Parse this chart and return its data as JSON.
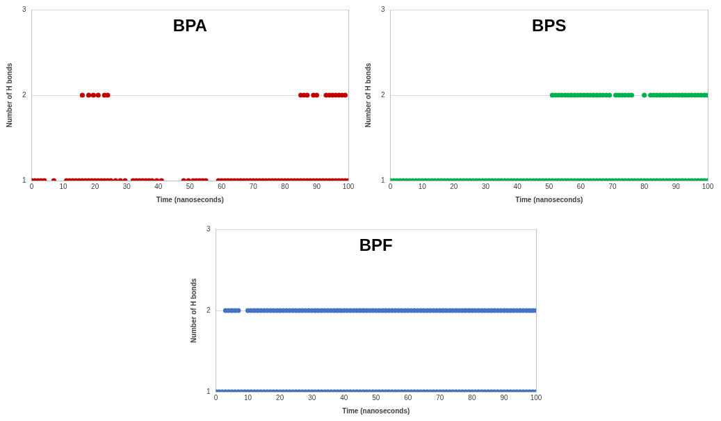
{
  "chart_data": [
    {
      "type": "scatter",
      "title": "BPA",
      "xlabel": "Time (nanoseconds)",
      "ylabel": "Number of H bonds",
      "color": "#c00000",
      "marker": "circle",
      "grid": "y",
      "xlim": [
        0,
        100
      ],
      "xticks": [
        0,
        10,
        20,
        30,
        40,
        50,
        60,
        70,
        80,
        90,
        100
      ],
      "ylim": [
        1,
        3
      ],
      "yticks": [
        1,
        2,
        3
      ],
      "x": [
        0,
        1,
        2,
        3,
        4,
        7,
        11,
        12,
        13,
        14,
        15,
        16,
        17,
        18,
        19,
        20,
        21,
        22,
        23,
        24,
        25,
        26.5,
        28,
        29.5,
        32,
        33,
        34,
        35,
        36,
        37,
        38,
        39.5,
        41,
        48,
        49.5,
        51,
        52,
        53,
        54,
        55,
        59,
        60,
        61,
        62,
        63,
        64,
        65,
        66,
        67,
        68,
        69,
        70,
        71,
        72,
        73,
        74,
        75,
        76,
        77,
        78,
        79,
        80,
        81,
        82,
        83,
        84,
        85,
        86,
        87,
        88,
        89,
        90,
        91,
        92,
        93,
        94,
        95,
        96,
        97,
        98,
        99,
        100,
        16,
        18,
        19.5,
        21,
        23,
        24,
        85,
        86,
        87,
        89,
        90,
        93,
        94,
        95,
        96,
        97,
        98,
        99
      ],
      "values": [
        1,
        1,
        1,
        1,
        1,
        1,
        1,
        1,
        1,
        1,
        1,
        1,
        1,
        1,
        1,
        1,
        1,
        1,
        1,
        1,
        1,
        1,
        1,
        1,
        1,
        1,
        1,
        1,
        1,
        1,
        1,
        1,
        1,
        1,
        1,
        1,
        1,
        1,
        1,
        1,
        1,
        1,
        1,
        1,
        1,
        1,
        1,
        1,
        1,
        1,
        1,
        1,
        1,
        1,
        1,
        1,
        1,
        1,
        1,
        1,
        1,
        1,
        1,
        1,
        1,
        1,
        1,
        1,
        1,
        1,
        1,
        1,
        1,
        1,
        1,
        1,
        1,
        1,
        1,
        1,
        1,
        1,
        2,
        2,
        2,
        2,
        2,
        2,
        2,
        2,
        2,
        2,
        2,
        2,
        2,
        2,
        2,
        2,
        2,
        2
      ]
    },
    {
      "type": "scatter",
      "title": "BPS",
      "xlabel": "Time (nanoseconds)",
      "ylabel": "Number of H bonds",
      "color": "#00b050",
      "marker": "circle",
      "grid": "y",
      "xlim": [
        0,
        100
      ],
      "xticks": [
        0,
        10,
        20,
        30,
        40,
        50,
        60,
        70,
        80,
        90,
        100
      ],
      "ylim": [
        1,
        3
      ],
      "yticks": [
        1,
        2,
        3
      ],
      "x": [
        0,
        1,
        2,
        3,
        4,
        5,
        6,
        7,
        8,
        9,
        10,
        11,
        12,
        13,
        14,
        15,
        16,
        17,
        18,
        19,
        20,
        21,
        22,
        23,
        24,
        25,
        26,
        27,
        28,
        29,
        30,
        31,
        32,
        33,
        34,
        35,
        36,
        37,
        38,
        39,
        40,
        41,
        42,
        43,
        44,
        45,
        46,
        47,
        48,
        49,
        50,
        51,
        52,
        53,
        54,
        55,
        56,
        57,
        58,
        59,
        60,
        61,
        62,
        63,
        64,
        65,
        66,
        67,
        68,
        69,
        70,
        71,
        72,
        73,
        74,
        75,
        76,
        77,
        78,
        79,
        80,
        81,
        82,
        83,
        84,
        85,
        86,
        87,
        88,
        89,
        90,
        91,
        92,
        93,
        94,
        95,
        96,
        97,
        98,
        99,
        100,
        51,
        52,
        53,
        54,
        55,
        56,
        57,
        58,
        59,
        60,
        61,
        62,
        63,
        64,
        65,
        66,
        67,
        68,
        69,
        71,
        72,
        73,
        74,
        75,
        76,
        80,
        82,
        83,
        84,
        85,
        86,
        87,
        88,
        89,
        90,
        91,
        92,
        93,
        94,
        95,
        96,
        97,
        98,
        99,
        100
      ],
      "values": [
        1,
        1,
        1,
        1,
        1,
        1,
        1,
        1,
        1,
        1,
        1,
        1,
        1,
        1,
        1,
        1,
        1,
        1,
        1,
        1,
        1,
        1,
        1,
        1,
        1,
        1,
        1,
        1,
        1,
        1,
        1,
        1,
        1,
        1,
        1,
        1,
        1,
        1,
        1,
        1,
        1,
        1,
        1,
        1,
        1,
        1,
        1,
        1,
        1,
        1,
        1,
        1,
        1,
        1,
        1,
        1,
        1,
        1,
        1,
        1,
        1,
        1,
        1,
        1,
        1,
        1,
        1,
        1,
        1,
        1,
        1,
        1,
        1,
        1,
        1,
        1,
        1,
        1,
        1,
        1,
        1,
        1,
        1,
        1,
        1,
        1,
        1,
        1,
        1,
        1,
        1,
        1,
        1,
        1,
        1,
        1,
        1,
        1,
        1,
        1,
        1,
        2,
        2,
        2,
        2,
        2,
        2,
        2,
        2,
        2,
        2,
        2,
        2,
        2,
        2,
        2,
        2,
        2,
        2,
        2,
        2,
        2,
        2,
        2,
        2,
        2,
        2,
        2,
        2,
        2,
        2,
        2,
        2,
        2,
        2,
        2,
        2,
        2,
        2,
        2,
        2,
        2,
        2,
        2,
        2,
        2
      ]
    },
    {
      "type": "scatter",
      "title": "BPF",
      "xlabel": "Time (nanoseconds)",
      "ylabel": "Number of H bonds",
      "color": "#4472c4",
      "marker": "circle",
      "grid": "y",
      "xlim": [
        0,
        100
      ],
      "xticks": [
        0,
        10,
        20,
        30,
        40,
        50,
        60,
        70,
        80,
        90,
        100
      ],
      "ylim": [
        1,
        3
      ],
      "yticks": [
        1,
        2,
        3
      ],
      "x": [
        0,
        1,
        2,
        3,
        4,
        5,
        6,
        7,
        8,
        9,
        10,
        11,
        12,
        13,
        14,
        15,
        16,
        17,
        18,
        19,
        20,
        21,
        22,
        23,
        24,
        25,
        26,
        27,
        28,
        29,
        30,
        31,
        32,
        33,
        34,
        35,
        36,
        37,
        38,
        39,
        40,
        41,
        42,
        43,
        44,
        45,
        46,
        47,
        48,
        49,
        50,
        51,
        52,
        53,
        54,
        55,
        56,
        57,
        58,
        59,
        60,
        61,
        62,
        63,
        64,
        65,
        66,
        67,
        68,
        69,
        70,
        71,
        72,
        73,
        74,
        75,
        76,
        77,
        78,
        79,
        80,
        81,
        82,
        83,
        84,
        85,
        86,
        87,
        88,
        89,
        90,
        91,
        92,
        93,
        94,
        95,
        96,
        97,
        98,
        99,
        100,
        3,
        4,
        5,
        6,
        7,
        10,
        11,
        12,
        13,
        14,
        15,
        16,
        17,
        18,
        19,
        20,
        21,
        22,
        23,
        24,
        25,
        26,
        27,
        28,
        29,
        30,
        31,
        32,
        33,
        34,
        35,
        36,
        37,
        38,
        39,
        40,
        41,
        42,
        43,
        44,
        45,
        46,
        47,
        48,
        49,
        50,
        51,
        52,
        53,
        54,
        55,
        56,
        57,
        58,
        59,
        60,
        61,
        62,
        63,
        64,
        65,
        66,
        67,
        68,
        69,
        70,
        71,
        72,
        73,
        74,
        75,
        76,
        77,
        78,
        79,
        80,
        81,
        82,
        83,
        84,
        85,
        86,
        87,
        88,
        89,
        90,
        91,
        92,
        93,
        94,
        95,
        96,
        97,
        98,
        99,
        100
      ],
      "values": [
        1,
        1,
        1,
        1,
        1,
        1,
        1,
        1,
        1,
        1,
        1,
        1,
        1,
        1,
        1,
        1,
        1,
        1,
        1,
        1,
        1,
        1,
        1,
        1,
        1,
        1,
        1,
        1,
        1,
        1,
        1,
        1,
        1,
        1,
        1,
        1,
        1,
        1,
        1,
        1,
        1,
        1,
        1,
        1,
        1,
        1,
        1,
        1,
        1,
        1,
        1,
        1,
        1,
        1,
        1,
        1,
        1,
        1,
        1,
        1,
        1,
        1,
        1,
        1,
        1,
        1,
        1,
        1,
        1,
        1,
        1,
        1,
        1,
        1,
        1,
        1,
        1,
        1,
        1,
        1,
        1,
        1,
        1,
        1,
        1,
        1,
        1,
        1,
        1,
        1,
        1,
        1,
        1,
        1,
        1,
        1,
        1,
        1,
        1,
        1,
        1,
        2,
        2,
        2,
        2,
        2,
        2,
        2,
        2,
        2,
        2,
        2,
        2,
        2,
        2,
        2,
        2,
        2,
        2,
        2,
        2,
        2,
        2,
        2,
        2,
        2,
        2,
        2,
        2,
        2,
        2,
        2,
        2,
        2,
        2,
        2,
        2,
        2,
        2,
        2,
        2,
        2,
        2,
        2,
        2,
        2,
        2,
        2,
        2,
        2,
        2,
        2,
        2,
        2,
        2,
        2,
        2,
        2,
        2,
        2,
        2,
        2,
        2,
        2,
        2,
        2,
        2,
        2,
        2,
        2,
        2,
        2,
        2,
        2,
        2,
        2,
        2,
        2,
        2,
        2,
        2,
        2,
        2,
        2,
        2,
        2,
        2,
        2,
        2,
        2,
        2,
        2,
        2,
        2,
        2,
        2,
        2
      ]
    }
  ]
}
